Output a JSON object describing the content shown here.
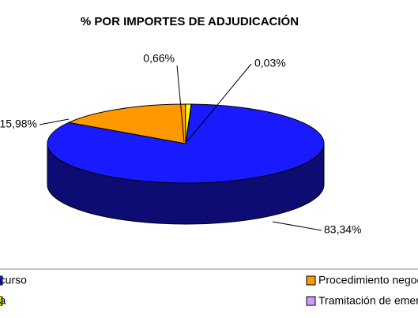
{
  "chart_data": {
    "type": "pie3d",
    "title": "% POR IMPORTES DE ADJUDICACIÓN",
    "categories": [
      "Concurso",
      "Procedimiento negociado",
      "Subasta",
      "Tramitación de emergencia"
    ],
    "values": [
      83.34,
      15.98,
      0.66,
      0.03
    ],
    "value_labels": [
      "83,34%",
      "15,98%",
      "0,66%",
      "0,03%"
    ],
    "colors": [
      "#1a1aff",
      "#ff9900",
      "#ffff00",
      "#cc99ff"
    ],
    "legend": "bottom"
  }
}
